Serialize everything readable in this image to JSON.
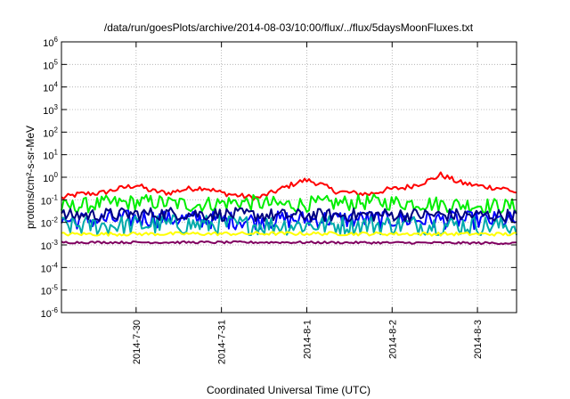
{
  "chart_data": {
    "type": "line",
    "title": "/data/run/goesPlots/archive/2014-08-03/10:00/flux/../flux/5daysMoonFluxes.txt",
    "xlabel": "Coordinated Universal Time (UTC)",
    "ylabel": "protons/cm²-s-sr-MeV",
    "yscale": "log",
    "ylim": [
      1e-06,
      1000000.0
    ],
    "xlim": [
      "2014-07-29 03:00",
      "2014-08-03 11:00"
    ],
    "grid": true,
    "y_ticks": [
      {
        "base": "10",
        "exp": "-6"
      },
      {
        "base": "10",
        "exp": "-5"
      },
      {
        "base": "10",
        "exp": "-4"
      },
      {
        "base": "10",
        "exp": "-3"
      },
      {
        "base": "10",
        "exp": "-2"
      },
      {
        "base": "10",
        "exp": "-1"
      },
      {
        "base": "10",
        "exp": "0"
      },
      {
        "base": "10",
        "exp": "1"
      },
      {
        "base": "10",
        "exp": "2"
      },
      {
        "base": "10",
        "exp": "3"
      },
      {
        "base": "10",
        "exp": "4"
      },
      {
        "base": "10",
        "exp": "5"
      },
      {
        "base": "10",
        "exp": "6"
      }
    ],
    "x_ticks": [
      "2014-7-30",
      "2014-7-31",
      "2014-8-1",
      "2014-8-2",
      "2014-8-3"
    ],
    "series": [
      {
        "color": "#ff0000",
        "keys": [
          [
            0,
            0.12
          ],
          [
            8,
            0.18
          ],
          [
            18,
            0.2
          ],
          [
            28,
            0.35
          ],
          [
            34,
            0.45
          ],
          [
            40,
            0.25
          ],
          [
            48,
            0.2
          ],
          [
            56,
            0.3
          ],
          [
            64,
            0.35
          ],
          [
            72,
            0.2
          ],
          [
            80,
            0.15
          ],
          [
            88,
            0.12
          ],
          [
            94,
            0.2
          ],
          [
            100,
            0.35
          ],
          [
            106,
            0.6
          ],
          [
            110,
            0.75
          ],
          [
            116,
            0.5
          ],
          [
            122,
            0.25
          ],
          [
            130,
            0.2
          ],
          [
            138,
            0.18
          ],
          [
            146,
            0.28
          ],
          [
            154,
            0.35
          ],
          [
            160,
            0.5
          ],
          [
            166,
            0.8
          ],
          [
            170,
            1.3
          ],
          [
            174,
            0.9
          ],
          [
            178,
            0.6
          ],
          [
            182,
            0.5
          ],
          [
            188,
            0.4
          ],
          [
            194,
            0.35
          ],
          [
            200,
            0.3
          ],
          [
            204,
            0.2
          ]
        ],
        "noise": 0.12
      },
      {
        "color": "#00ee00",
        "keys": [
          [
            0,
            0.045
          ],
          [
            20,
            0.07
          ],
          [
            40,
            0.08
          ],
          [
            60,
            0.06
          ],
          [
            80,
            0.08
          ],
          [
            100,
            0.06
          ],
          [
            120,
            0.07
          ],
          [
            140,
            0.08
          ],
          [
            160,
            0.07
          ],
          [
            180,
            0.06
          ],
          [
            204,
            0.05
          ]
        ],
        "noise": 0.35
      },
      {
        "color": "#0000ff",
        "keys": [
          [
            0,
            0.012
          ],
          [
            40,
            0.015
          ],
          [
            80,
            0.012
          ],
          [
            120,
            0.014
          ],
          [
            160,
            0.013
          ],
          [
            204,
            0.012
          ]
        ],
        "noise": 0.4
      },
      {
        "color": "#00aaaa",
        "keys": [
          [
            0,
            0.007
          ],
          [
            50,
            0.008
          ],
          [
            100,
            0.0075
          ],
          [
            150,
            0.008
          ],
          [
            204,
            0.007
          ]
        ],
        "noise": 0.45
      },
      {
        "color": "#000080",
        "keys": [
          [
            0,
            0.02
          ],
          [
            50,
            0.025
          ],
          [
            100,
            0.02
          ],
          [
            150,
            0.022
          ],
          [
            204,
            0.02
          ]
        ],
        "noise": 0.3
      },
      {
        "color": "#ffff00",
        "keys": [
          [
            0,
            0.003
          ],
          [
            100,
            0.0032
          ],
          [
            204,
            0.003
          ]
        ],
        "noise": 0.08
      },
      {
        "color": "#800060",
        "keys": [
          [
            0,
            0.0013
          ],
          [
            100,
            0.0013
          ],
          [
            204,
            0.0012
          ]
        ],
        "noise": 0.05
      }
    ]
  }
}
